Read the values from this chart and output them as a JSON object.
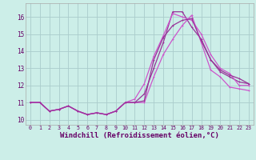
{
  "bg_color": "#cceee8",
  "grid_color": "#aacccc",
  "line_color1": "#993399",
  "line_color2": "#cc55cc",
  "xlabel": "Windchill (Refroidissement éolien,°C)",
  "xlabel_fontsize": 6.5,
  "ylabel_ticks": [
    10,
    11,
    12,
    13,
    14,
    15,
    16
  ],
  "xtick_labels": [
    "0",
    "1",
    "2",
    "3",
    "4",
    "5",
    "6",
    "7",
    "8",
    "9",
    "10",
    "11",
    "12",
    "13",
    "14",
    "15",
    "16",
    "17",
    "18",
    "19",
    "20",
    "21",
    "22",
    "23"
  ],
  "xlim": [
    -0.5,
    23.5
  ],
  "ylim": [
    9.7,
    16.8
  ],
  "series1_x": [
    0,
    1,
    2,
    3,
    4,
    5,
    6,
    7,
    8,
    9,
    10,
    11,
    12,
    13,
    14,
    15,
    16,
    17,
    18,
    19,
    20,
    21,
    22,
    23
  ],
  "series1_y": [
    11.0,
    11.0,
    10.5,
    10.6,
    10.8,
    10.5,
    10.3,
    10.4,
    10.3,
    10.5,
    11.0,
    11.0,
    11.1,
    13.5,
    14.8,
    15.5,
    15.8,
    15.9,
    14.6,
    13.5,
    12.9,
    12.6,
    12.4,
    12.1
  ],
  "series2_x": [
    0,
    1,
    2,
    3,
    4,
    5,
    6,
    7,
    8,
    9,
    10,
    11,
    12,
    13,
    14,
    15,
    16,
    17,
    18,
    19,
    20,
    21,
    22,
    23
  ],
  "series2_y": [
    11.0,
    11.0,
    10.5,
    10.6,
    10.8,
    10.5,
    10.3,
    10.4,
    10.3,
    10.5,
    11.0,
    11.2,
    12.1,
    13.7,
    14.9,
    16.2,
    16.0,
    15.8,
    15.0,
    13.8,
    13.0,
    12.7,
    12.0,
    12.0
  ],
  "series3_x": [
    0,
    1,
    2,
    3,
    4,
    5,
    6,
    7,
    8,
    9,
    10,
    11,
    12,
    13,
    14,
    15,
    16,
    17,
    18,
    19,
    20,
    21,
    22,
    23
  ],
  "series3_y": [
    11.0,
    11.0,
    10.5,
    10.6,
    10.8,
    10.5,
    10.3,
    10.4,
    10.3,
    10.5,
    11.0,
    11.0,
    11.5,
    13.0,
    14.5,
    16.3,
    16.3,
    15.4,
    14.7,
    13.5,
    12.8,
    12.5,
    12.2,
    12.1
  ],
  "series4_x": [
    0,
    1,
    2,
    3,
    4,
    5,
    6,
    7,
    8,
    9,
    10,
    11,
    12,
    13,
    14,
    15,
    16,
    17,
    18,
    19,
    20,
    21,
    22,
    23
  ],
  "series4_y": [
    11.0,
    11.0,
    10.5,
    10.6,
    10.8,
    10.5,
    10.3,
    10.4,
    10.3,
    10.5,
    11.0,
    11.0,
    11.0,
    12.5,
    13.8,
    14.7,
    15.5,
    16.1,
    14.5,
    12.9,
    12.5,
    11.9,
    11.8,
    11.7
  ]
}
